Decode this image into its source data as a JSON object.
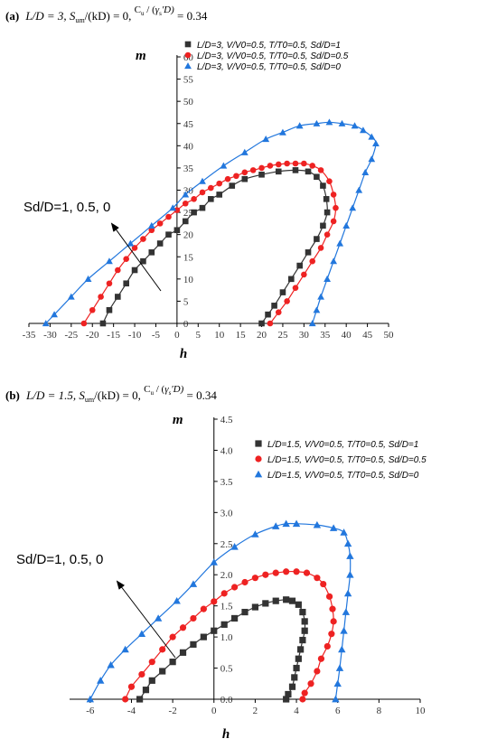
{
  "panels": [
    {
      "title_prefix": "(a)",
      "title_parts": [
        "L/D = 3, S",
        "um",
        "/(kD) = 0,  ",
        "C",
        "u",
        " / (",
        "γ",
        "s",
        "'D)",
        "  = 0.34"
      ],
      "annotation": "Sd/D=1, 0.5, 0"
    },
    {
      "title_prefix": "(b)",
      "title_parts": [
        "L/D = 1.5, S",
        "um",
        "/(kD) = 0,  ",
        "C",
        "u",
        " / (",
        "γ",
        "s",
        "'D)",
        "  = 0.34"
      ],
      "annotation": "Sd/D=1, 0.5, 0"
    }
  ],
  "chart_data": [
    {
      "type": "line",
      "xlabel": "h",
      "ylabel": "m",
      "xlim": [
        -35,
        50
      ],
      "ylim": [
        0,
        60
      ],
      "xticks": [
        -35,
        -30,
        -25,
        -20,
        -15,
        -10,
        -5,
        0,
        5,
        10,
        15,
        20,
        25,
        30,
        35,
        40,
        45,
        50
      ],
      "yticks": [
        0,
        5,
        10,
        15,
        20,
        25,
        30,
        35,
        40,
        45,
        50,
        55,
        60
      ],
      "legend_position": "top-right",
      "series": [
        {
          "name": "L/D=3, V/V0=0.5, T/T0=0.5, Sd/D=1",
          "color": "#333333",
          "marker": "square",
          "points": [
            [
              -17.5,
              0
            ],
            [
              -16,
              3
            ],
            [
              -14,
              6
            ],
            [
              -12,
              9
            ],
            [
              -10,
              12
            ],
            [
              -8,
              14
            ],
            [
              -6,
              16
            ],
            [
              -4,
              18
            ],
            [
              -2,
              20
            ],
            [
              0,
              21
            ],
            [
              2,
              23
            ],
            [
              4,
              25
            ],
            [
              6,
              26
            ],
            [
              8,
              28
            ],
            [
              10,
              29
            ],
            [
              13,
              31
            ],
            [
              16,
              32.5
            ],
            [
              20,
              33.5
            ],
            [
              24,
              34.2
            ],
            [
              28,
              34.5
            ],
            [
              31,
              34.2
            ],
            [
              33,
              33
            ],
            [
              34.5,
              31
            ],
            [
              35.3,
              28
            ],
            [
              35.5,
              25
            ],
            [
              34.5,
              22
            ],
            [
              33,
              19
            ],
            [
              31,
              16
            ],
            [
              29,
              13
            ],
            [
              27,
              10
            ],
            [
              25,
              7
            ],
            [
              23,
              4
            ],
            [
              21.5,
              2
            ],
            [
              20,
              0
            ]
          ]
        },
        {
          "name": "L/D=3, V/V0=0.5, T/T0=0.5, Sd/D=0.5",
          "color": "#ee2222",
          "marker": "circle",
          "points": [
            [
              -22,
              0
            ],
            [
              -20,
              3
            ],
            [
              -18,
              6
            ],
            [
              -16,
              9
            ],
            [
              -14,
              12
            ],
            [
              -12,
              14.5
            ],
            [
              -10,
              17
            ],
            [
              -8,
              19
            ],
            [
              -6,
              21
            ],
            [
              -4,
              22.5
            ],
            [
              -2,
              24
            ],
            [
              0,
              25.5
            ],
            [
              2,
              27
            ],
            [
              4,
              28
            ],
            [
              6,
              29.5
            ],
            [
              8,
              30.5
            ],
            [
              10,
              31.5
            ],
            [
              12,
              32.5
            ],
            [
              14,
              33.2
            ],
            [
              16,
              34
            ],
            [
              18,
              34.5
            ],
            [
              20,
              35
            ],
            [
              22,
              35.5
            ],
            [
              24,
              35.8
            ],
            [
              26,
              36
            ],
            [
              28,
              36
            ],
            [
              30,
              36
            ],
            [
              32,
              35.5
            ],
            [
              34,
              34.5
            ],
            [
              36,
              32
            ],
            [
              37,
              29
            ],
            [
              37.5,
              26
            ],
            [
              37,
              23
            ],
            [
              35.5,
              20
            ],
            [
              34,
              17
            ],
            [
              32,
              14
            ],
            [
              30,
              11
            ],
            [
              28,
              8
            ],
            [
              26,
              5
            ],
            [
              24,
              2.5
            ],
            [
              22,
              0
            ]
          ]
        },
        {
          "name": "L/D=3, V/V0=0.5, T/T0=0.5, Sd/D=0",
          "color": "#2277dd",
          "marker": "triangle",
          "points": [
            [
              -31,
              0
            ],
            [
              -29,
              2
            ],
            [
              -25,
              6
            ],
            [
              -21,
              10
            ],
            [
              -16,
              14
            ],
            [
              -11,
              18
            ],
            [
              -6,
              22
            ],
            [
              -1,
              26
            ],
            [
              2,
              29
            ],
            [
              6,
              32
            ],
            [
              11,
              35.5
            ],
            [
              16,
              38.5
            ],
            [
              21,
              41.5
            ],
            [
              25,
              43
            ],
            [
              29,
              44.5
            ],
            [
              33,
              45
            ],
            [
              36,
              45.3
            ],
            [
              39,
              45
            ],
            [
              42,
              44.5
            ],
            [
              44,
              43.5
            ],
            [
              46,
              42
            ],
            [
              47,
              40.5
            ],
            [
              46,
              37
            ],
            [
              44.5,
              34
            ],
            [
              43,
              30
            ],
            [
              41.5,
              26
            ],
            [
              40,
              22
            ],
            [
              38.5,
              18
            ],
            [
              37,
              14
            ],
            [
              35.5,
              10
            ],
            [
              34,
              6
            ],
            [
              33,
              3
            ],
            [
              32,
              0
            ]
          ]
        }
      ]
    },
    {
      "type": "line",
      "xlabel": "h",
      "ylabel": "m",
      "xlim": [
        -7,
        10
      ],
      "ylim": [
        0,
        4.5
      ],
      "xticks": [
        -6,
        -4,
        -2,
        0,
        2,
        4,
        6,
        8,
        10
      ],
      "yticks": [
        0.0,
        0.5,
        1.0,
        1.5,
        2.0,
        2.5,
        3.0,
        3.5,
        4.0,
        4.5
      ],
      "legend_position": "top-right",
      "series": [
        {
          "name": "L/D=1.5, V/V0=0.5, T/T0=0.5, Sd/D=1",
          "color": "#333333",
          "marker": "square",
          "points": [
            [
              -3.6,
              0
            ],
            [
              -3.3,
              0.15
            ],
            [
              -3,
              0.3
            ],
            [
              -2.5,
              0.45
            ],
            [
              -2,
              0.6
            ],
            [
              -1.5,
              0.75
            ],
            [
              -1,
              0.88
            ],
            [
              -0.5,
              1.0
            ],
            [
              0,
              1.1
            ],
            [
              0.5,
              1.2
            ],
            [
              1,
              1.3
            ],
            [
              1.5,
              1.4
            ],
            [
              2,
              1.48
            ],
            [
              2.5,
              1.54
            ],
            [
              3,
              1.58
            ],
            [
              3.5,
              1.6
            ],
            [
              3.8,
              1.58
            ],
            [
              4.1,
              1.52
            ],
            [
              4.3,
              1.4
            ],
            [
              4.4,
              1.25
            ],
            [
              4.4,
              1.1
            ],
            [
              4.3,
              0.95
            ],
            [
              4.2,
              0.8
            ],
            [
              4.1,
              0.65
            ],
            [
              4.0,
              0.5
            ],
            [
              3.9,
              0.35
            ],
            [
              3.8,
              0.2
            ],
            [
              3.6,
              0.08
            ],
            [
              3.5,
              0
            ]
          ]
        },
        {
          "name": "L/D=1.5, V/V0=0.5, T/T0=0.5, Sd/D=0.5",
          "color": "#ee2222",
          "marker": "circle",
          "points": [
            [
              -4.3,
              0
            ],
            [
              -4,
              0.2
            ],
            [
              -3.5,
              0.4
            ],
            [
              -3,
              0.6
            ],
            [
              -2.5,
              0.8
            ],
            [
              -2,
              1.0
            ],
            [
              -1.5,
              1.15
            ],
            [
              -1,
              1.3
            ],
            [
              -0.5,
              1.45
            ],
            [
              0,
              1.57
            ],
            [
              0.5,
              1.7
            ],
            [
              1,
              1.8
            ],
            [
              1.5,
              1.88
            ],
            [
              2,
              1.95
            ],
            [
              2.5,
              2.0
            ],
            [
              3,
              2.03
            ],
            [
              3.5,
              2.05
            ],
            [
              4,
              2.05
            ],
            [
              4.5,
              2.03
            ],
            [
              5,
              1.95
            ],
            [
              5.3,
              1.85
            ],
            [
              5.6,
              1.65
            ],
            [
              5.75,
              1.45
            ],
            [
              5.8,
              1.25
            ],
            [
              5.7,
              1.05
            ],
            [
              5.5,
              0.85
            ],
            [
              5.2,
              0.65
            ],
            [
              5,
              0.45
            ],
            [
              4.7,
              0.25
            ],
            [
              4.4,
              0.1
            ],
            [
              4.3,
              0
            ]
          ]
        },
        {
          "name": "L/D=1.5, V/V0=0.5, T/T0=0.5, Sd/D=0",
          "color": "#2277dd",
          "marker": "triangle",
          "points": [
            [
              -6,
              0
            ],
            [
              -5.5,
              0.3
            ],
            [
              -5,
              0.55
            ],
            [
              -4.3,
              0.8
            ],
            [
              -3.5,
              1.05
            ],
            [
              -2.7,
              1.3
            ],
            [
              -1.8,
              1.58
            ],
            [
              -1,
              1.85
            ],
            [
              0,
              2.2
            ],
            [
              1,
              2.45
            ],
            [
              2,
              2.65
            ],
            [
              3,
              2.78
            ],
            [
              3.5,
              2.82
            ],
            [
              4,
              2.82
            ],
            [
              5,
              2.8
            ],
            [
              5.8,
              2.75
            ],
            [
              6.3,
              2.68
            ],
            [
              6.5,
              2.5
            ],
            [
              6.6,
              2.3
            ],
            [
              6.6,
              2.0
            ],
            [
              6.5,
              1.7
            ],
            [
              6.4,
              1.4
            ],
            [
              6.3,
              1.1
            ],
            [
              6.2,
              0.8
            ],
            [
              6.1,
              0.5
            ],
            [
              6,
              0.25
            ],
            [
              5.9,
              0
            ]
          ]
        }
      ]
    }
  ]
}
